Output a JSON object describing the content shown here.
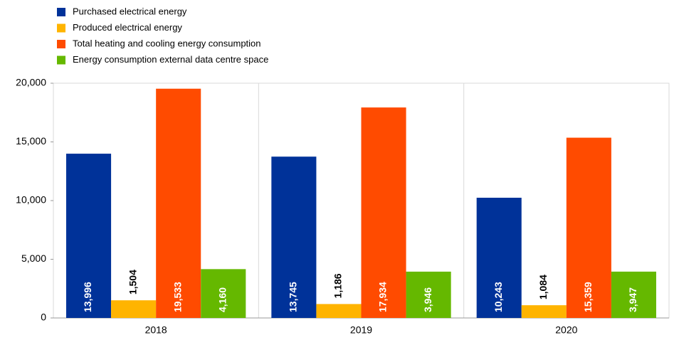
{
  "chart_data": {
    "type": "bar",
    "categories": [
      "2018",
      "2019",
      "2020"
    ],
    "series": [
      {
        "name": "Purchased electrical energy",
        "color": "#003299",
        "values": [
          13996,
          13745,
          10243
        ],
        "value_labels": [
          "13,996",
          "13,745",
          "10,243"
        ]
      },
      {
        "name": "Produced electrical energy",
        "color": "#ffb400",
        "values": [
          1504,
          1186,
          1084
        ],
        "value_labels": [
          "1,504",
          "1,186",
          "1,084"
        ]
      },
      {
        "name": "Total heating and cooling energy consumption",
        "color": "#ff4b00",
        "values": [
          19533,
          17934,
          15359
        ],
        "value_labels": [
          "19,533",
          "17,934",
          "15,359"
        ]
      },
      {
        "name": "Energy consumption external data centre space",
        "color": "#65b800",
        "values": [
          4160,
          3946,
          3947
        ],
        "value_labels": [
          "4,160",
          "3,946",
          "3,947"
        ]
      }
    ],
    "ylim": [
      0,
      20000
    ],
    "yticks": [
      0,
      {
        "value": 5000,
        "label": "5,000"
      },
      {
        "value": 10000,
        "label": "10,000"
      },
      {
        "value": 15000,
        "label": "15,000"
      },
      {
        "value": 20000,
        "label": "20,000"
      }
    ],
    "legend": "top-left"
  }
}
